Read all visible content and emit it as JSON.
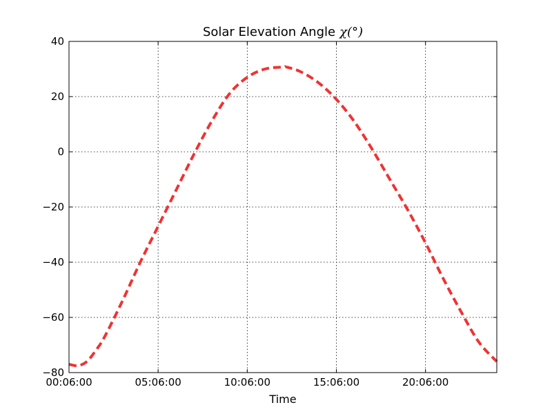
{
  "chart_data": {
    "type": "line",
    "title": "Solar Elevation Angle",
    "title_symbol": "χ(°)",
    "xlabel": "Time",
    "ylabel": "",
    "x_unit": "hours",
    "xlim": [
      0.1,
      24.1
    ],
    "ylim": [
      -80,
      40
    ],
    "x_ticks": [
      {
        "value": 0.1,
        "label": "00:06:00"
      },
      {
        "value": 5.1,
        "label": "05:06:00"
      },
      {
        "value": 10.1,
        "label": "10:06:00"
      },
      {
        "value": 15.1,
        "label": "15:06:00"
      },
      {
        "value": 20.1,
        "label": "20:06:00"
      }
    ],
    "y_ticks": [
      {
        "value": 40,
        "label": "40"
      },
      {
        "value": 20,
        "label": "20"
      },
      {
        "value": 0,
        "label": "0"
      },
      {
        "value": -20,
        "label": "−20"
      },
      {
        "value": -40,
        "label": "−40"
      },
      {
        "value": -60,
        "label": "−60"
      },
      {
        "value": -80,
        "label": "−80"
      }
    ],
    "grid": true,
    "legend": "none",
    "series": [
      {
        "color": "#ee3333",
        "linestyle": "dashed",
        "x": [
          0.1,
          0.6,
          1.1,
          1.6,
          2.1,
          3.1,
          4.1,
          5.1,
          6.1,
          7.1,
          8.1,
          9.1,
          10.1,
          11.1,
          12.1,
          12.3,
          13.1,
          14.1,
          15.1,
          16.1,
          17.1,
          18.1,
          19.1,
          20.1,
          21.1,
          22.1,
          23.1,
          24.1
        ],
        "y": [
          -77,
          -77.5,
          -76,
          -72,
          -67,
          -54,
          -40,
          -27,
          -14,
          -1,
          11,
          21,
          27,
          30,
          30.7,
          30.7,
          29,
          25,
          19,
          11,
          1,
          -10,
          -21,
          -33,
          -46,
          -58,
          -69,
          -76
        ]
      }
    ]
  }
}
